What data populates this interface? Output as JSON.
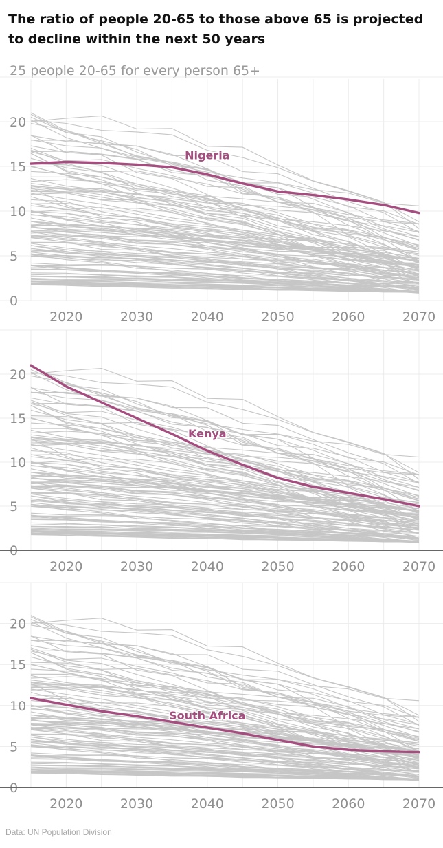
{
  "title": "The ratio of people 20-65 to those above 65 is projected to decline within the next 50 years",
  "subtitle": "25 people 20-65 for every person 65+",
  "source": "Data: UN Population Division",
  "colors": {
    "highlight": "#a64d80",
    "background_lines": "#c6c6c6",
    "grid": "#ececec",
    "axis_text": "#8f8f8f",
    "baseline": "#666666"
  },
  "chart_data": [
    {
      "type": "line",
      "highlight": "Nigeria",
      "x": [
        2015,
        2020,
        2025,
        2030,
        2035,
        2040,
        2045,
        2050,
        2055,
        2060,
        2065,
        2070
      ],
      "xticks": [
        "2020",
        "2030",
        "2040",
        "2050",
        "2060",
        "2070"
      ],
      "yticks": [
        "0",
        "5",
        "10",
        "15",
        "20"
      ],
      "ylim": [
        0,
        25
      ],
      "grid": true,
      "series": [
        {
          "name": "Nigeria",
          "values": [
            15.3,
            15.5,
            15.4,
            15.2,
            14.9,
            14.1,
            13.1,
            12.2,
            11.8,
            11.3,
            10.7,
            9.8
          ]
        }
      ],
      "label_at": [
        2040,
        15.8
      ]
    },
    {
      "type": "line",
      "highlight": "Kenya",
      "x": [
        2015,
        2020,
        2025,
        2030,
        2035,
        2040,
        2045,
        2050,
        2055,
        2060,
        2065,
        2070
      ],
      "xticks": [
        "2020",
        "2030",
        "2040",
        "2050",
        "2060",
        "2070"
      ],
      "yticks": [
        "0",
        "5",
        "10",
        "15",
        "20"
      ],
      "ylim": [
        0,
        25
      ],
      "grid": true,
      "series": [
        {
          "name": "Kenya",
          "values": [
            21.0,
            18.6,
            16.8,
            15.0,
            13.2,
            11.3,
            9.7,
            8.2,
            7.2,
            6.5,
            5.8,
            5.0
          ]
        }
      ],
      "label_at": [
        2040,
        12.8
      ]
    },
    {
      "type": "line",
      "highlight": "South Africa",
      "x": [
        2015,
        2020,
        2025,
        2030,
        2035,
        2040,
        2045,
        2050,
        2055,
        2060,
        2065,
        2070
      ],
      "xticks": [
        "2020",
        "2030",
        "2040",
        "2050",
        "2060",
        "2070"
      ],
      "yticks": [
        "0",
        "5",
        "10",
        "15",
        "20"
      ],
      "ylim": [
        0,
        25
      ],
      "grid": true,
      "series": [
        {
          "name": "South Africa",
          "values": [
            10.9,
            10.1,
            9.3,
            8.7,
            8.0,
            7.3,
            6.6,
            5.8,
            5.0,
            4.6,
            4.4,
            4.3
          ]
        }
      ],
      "label_at": [
        2040,
        8.3
      ]
    }
  ]
}
